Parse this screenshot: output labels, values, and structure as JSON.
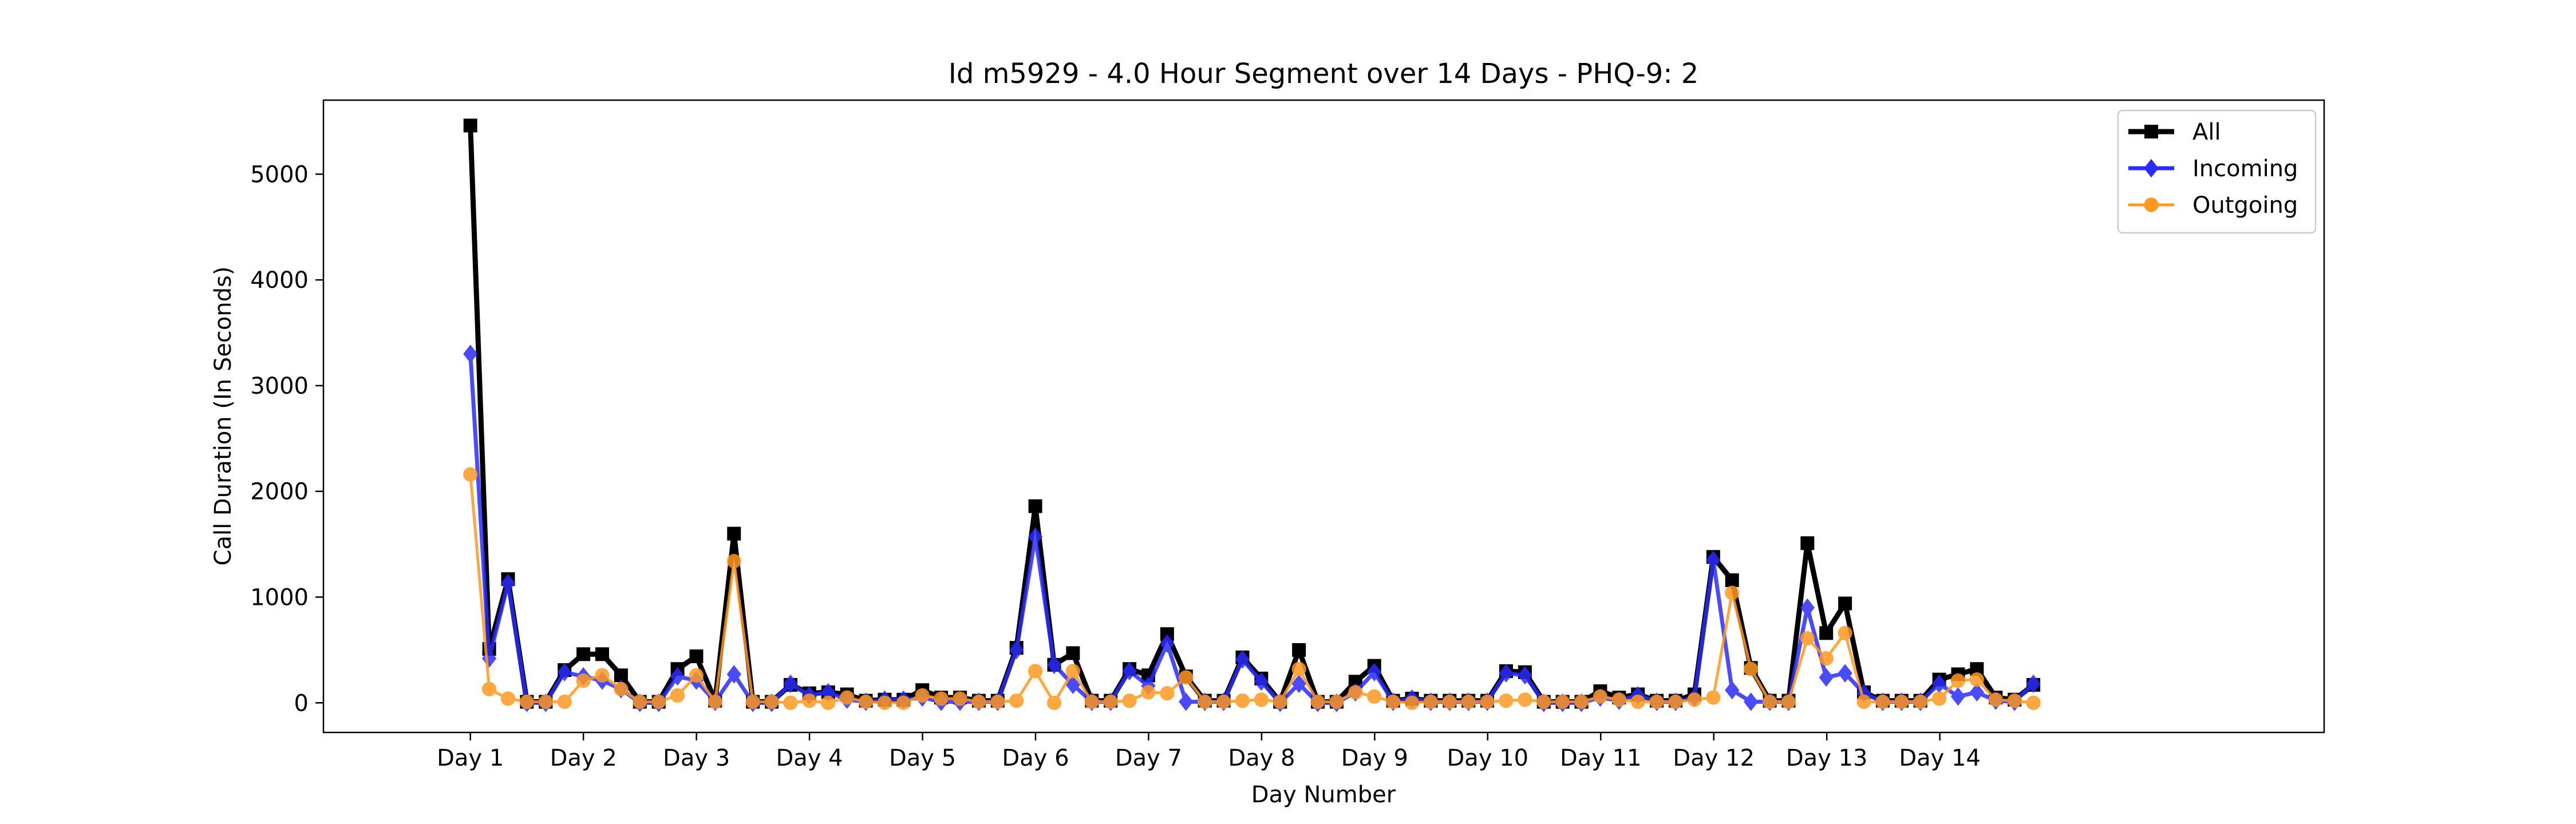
{
  "chart_data": {
    "type": "line",
    "title": "Id m5929 - 4.0 Hour Segment over 14 Days - PHQ-9: 2",
    "xlabel": "Day Number",
    "ylabel": "Call Duration (In Seconds)",
    "ylim": [
      -280,
      5700
    ],
    "xlim": [
      -0.65,
      8.2
    ],
    "xticks": [
      {
        "x": 0,
        "label": "Day 1"
      },
      {
        "x": 0.5,
        "label": "Day 2"
      },
      {
        "x": 1,
        "label": "Day 3"
      },
      {
        "x": 1.5,
        "label": "Day 4"
      },
      {
        "x": 2,
        "label": "Day 5"
      },
      {
        "x": 2.5,
        "label": "Day 6"
      },
      {
        "x": 3,
        "label": "Day 7"
      },
      {
        "x": 3.5,
        "label": "Day 8"
      },
      {
        "x": 4,
        "label": "Day 9"
      },
      {
        "x": 4.5,
        "label": "Day 10"
      },
      {
        "x": 5,
        "label": "Day 11"
      },
      {
        "x": 5.5,
        "label": "Day 12"
      },
      {
        "x": 6,
        "label": "Day 13"
      },
      {
        "x": 6.5,
        "label": "Day 14"
      }
    ],
    "yticks": [
      0,
      1000,
      2000,
      3000,
      4000,
      5000
    ],
    "x_step": 0.0833,
    "legend_position": "upper right",
    "grid": false,
    "series": [
      {
        "name": "All",
        "color": "#000000",
        "marker": "square",
        "values": [
          5460,
          510,
          1170,
          10,
          10,
          310,
          460,
          460,
          260,
          10,
          10,
          320,
          440,
          20,
          1600,
          10,
          10,
          170,
          90,
          100,
          80,
          20,
          30,
          30,
          120,
          50,
          50,
          20,
          20,
          520,
          1860,
          360,
          470,
          20,
          20,
          320,
          260,
          650,
          250,
          20,
          20,
          430,
          230,
          10,
          500,
          10,
          10,
          200,
          350,
          20,
          40,
          20,
          20,
          20,
          20,
          300,
          290,
          10,
          10,
          10,
          110,
          50,
          80,
          20,
          20,
          80,
          1380,
          1160,
          330,
          20,
          20,
          1510,
          660,
          940,
          100,
          20,
          20,
          20,
          220,
          270,
          320,
          50,
          30,
          170
        ]
      },
      {
        "name": "Incoming",
        "color": "#2b2bff",
        "marker": "diamond",
        "values": [
          3300,
          420,
          1130,
          0,
          0,
          290,
          250,
          210,
          130,
          0,
          0,
          250,
          210,
          10,
          270,
          0,
          0,
          180,
          70,
          100,
          30,
          10,
          30,
          30,
          50,
          10,
          10,
          10,
          10,
          500,
          1570,
          360,
          170,
          10,
          10,
          300,
          160,
          560,
          10,
          10,
          10,
          410,
          200,
          0,
          180,
          0,
          0,
          100,
          290,
          10,
          40,
          10,
          10,
          10,
          10,
          280,
          260,
          0,
          0,
          0,
          50,
          20,
          70,
          10,
          10,
          50,
          1350,
          120,
          10,
          10,
          10,
          900,
          240,
          280,
          90,
          10,
          10,
          10,
          180,
          60,
          100,
          20,
          10,
          180
        ]
      },
      {
        "name": "Outgoing",
        "color": "#ff9922",
        "marker": "circle",
        "values": [
          2160,
          130,
          40,
          10,
          10,
          10,
          210,
          260,
          130,
          10,
          10,
          70,
          260,
          10,
          1340,
          10,
          10,
          0,
          20,
          0,
          50,
          10,
          0,
          0,
          70,
          40,
          40,
          10,
          10,
          20,
          300,
          0,
          300,
          10,
          10,
          20,
          100,
          90,
          240,
          10,
          10,
          20,
          30,
          10,
          320,
          10,
          10,
          100,
          60,
          10,
          0,
          10,
          10,
          10,
          10,
          20,
          30,
          10,
          10,
          10,
          60,
          30,
          10,
          10,
          10,
          30,
          50,
          1040,
          320,
          10,
          10,
          610,
          420,
          660,
          10,
          10,
          10,
          10,
          40,
          210,
          220,
          30,
          20,
          0
        ]
      }
    ]
  }
}
